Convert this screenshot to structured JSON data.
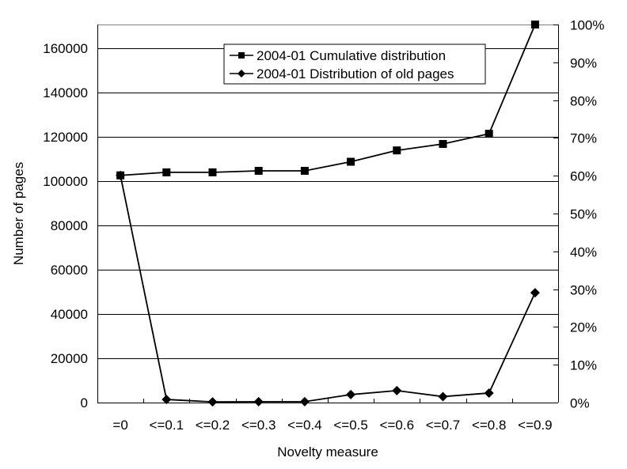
{
  "chart_data": {
    "type": "line",
    "title": "",
    "xlabel": "Novelty measure",
    "ylabel": "Number of pages",
    "y2label": "",
    "categories": [
      "=0",
      "<=0.1",
      "<=0.2",
      "<=0.3",
      "<=0.4",
      "<=0.5",
      "<=0.6",
      "<=0.7",
      "<=0.8",
      "<=0.9"
    ],
    "ylim": [
      0,
      170700
    ],
    "yticks": [
      0,
      20000,
      40000,
      60000,
      80000,
      100000,
      120000,
      140000,
      160000
    ],
    "ytick_labels": [
      "0",
      "20000",
      "40000",
      "60000",
      "80000",
      "100000",
      "120000",
      "140000",
      "160000"
    ],
    "y2lim": [
      0,
      100
    ],
    "y2ticks": [
      0,
      10,
      20,
      30,
      40,
      50,
      60,
      70,
      80,
      90,
      100
    ],
    "y2tick_labels": [
      "0%",
      "10%",
      "20%",
      "30%",
      "40%",
      "50%",
      "60%",
      "70%",
      "80%",
      "90%",
      "100%"
    ],
    "grid": "horizontal (left-axis major gridlines)",
    "legend_position": "top-center inside plot",
    "series": [
      {
        "name": "2004-01 Cumulative distribution",
        "axis": "right",
        "unit": "%",
        "marker": "square",
        "values": [
          60.1,
          60.9,
          60.9,
          61.3,
          61.3,
          63.7,
          66.7,
          68.4,
          71.1,
          100.0
        ]
      },
      {
        "name": "2004-01 Distribution of old pages",
        "axis": "left",
        "unit": "pages",
        "marker": "diamond",
        "values": [
          102600,
          1400,
          300,
          400,
          400,
          3600,
          5400,
          2700,
          4300,
          49600
        ]
      }
    ]
  }
}
